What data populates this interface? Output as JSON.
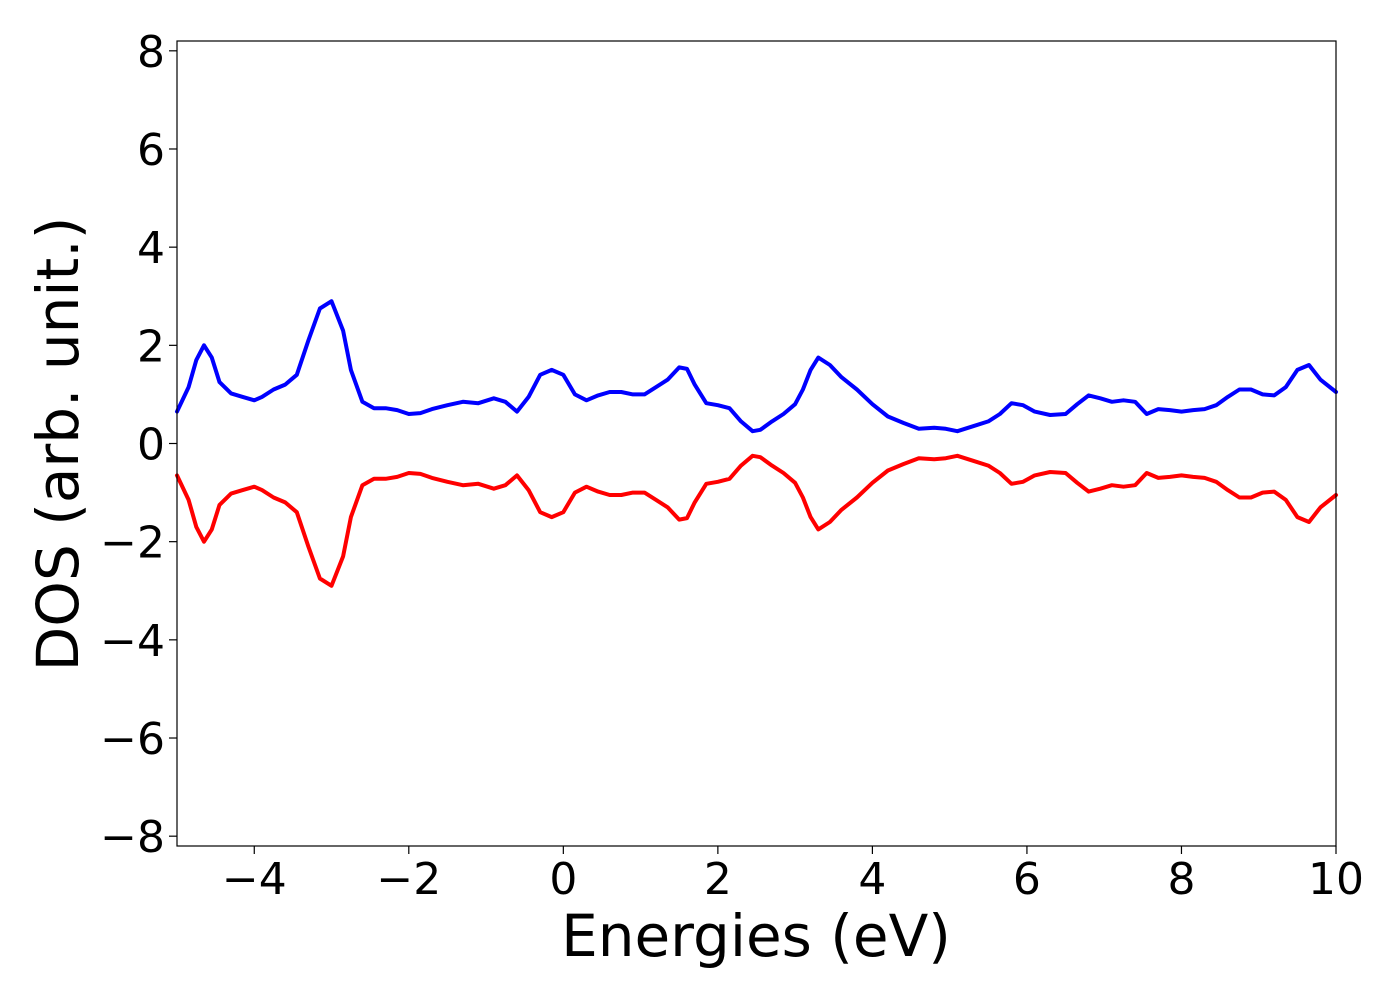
{
  "chart_data": {
    "type": "line",
    "title": "",
    "xlabel": "Energies (eV)",
    "ylabel": "DOS (arb. unit.)",
    "xlim": [
      -5,
      10
    ],
    "ylim": [
      -8.2,
      8.2
    ],
    "xticks": [
      -4,
      -2,
      0,
      2,
      4,
      6,
      8,
      10
    ],
    "xtick_labels": [
      "−4",
      "−2",
      "0",
      "2",
      "4",
      "6",
      "8",
      "10"
    ],
    "yticks": [
      -8,
      -6,
      -4,
      -2,
      0,
      2,
      4,
      6,
      8
    ],
    "ytick_labels": [
      "−8",
      "−6",
      "−4",
      "−2",
      "0",
      "2",
      "4",
      "6",
      "8"
    ],
    "grid": false,
    "legend": "none",
    "series": [
      {
        "color": "#0000ff",
        "x": [
          -5.0,
          -4.85,
          -4.75,
          -4.65,
          -4.55,
          -4.45,
          -4.3,
          -4.15,
          -4.0,
          -3.9,
          -3.75,
          -3.6,
          -3.45,
          -3.3,
          -3.15,
          -3.0,
          -2.85,
          -2.75,
          -2.6,
          -2.45,
          -2.3,
          -2.15,
          -2.0,
          -1.85,
          -1.7,
          -1.5,
          -1.3,
          -1.1,
          -0.9,
          -0.75,
          -0.6,
          -0.45,
          -0.3,
          -0.15,
          0.0,
          0.15,
          0.3,
          0.45,
          0.6,
          0.75,
          0.9,
          1.05,
          1.2,
          1.35,
          1.5,
          1.6,
          1.7,
          1.85,
          2.0,
          2.15,
          2.3,
          2.45,
          2.55,
          2.7,
          2.85,
          3.0,
          3.1,
          3.2,
          3.3,
          3.45,
          3.6,
          3.8,
          4.0,
          4.2,
          4.4,
          4.6,
          4.8,
          4.95,
          5.1,
          5.3,
          5.5,
          5.65,
          5.8,
          5.95,
          6.1,
          6.3,
          6.5,
          6.65,
          6.8,
          6.95,
          7.1,
          7.25,
          7.4,
          7.55,
          7.7,
          7.85,
          8.0,
          8.15,
          8.3,
          8.45,
          8.6,
          8.75,
          8.9,
          9.05,
          9.2,
          9.35,
          9.5,
          9.65,
          9.8,
          10.0
        ],
        "y": [
          0.65,
          1.15,
          1.7,
          2.0,
          1.75,
          1.25,
          1.02,
          0.95,
          0.88,
          0.95,
          1.1,
          1.2,
          1.4,
          2.1,
          2.75,
          2.9,
          2.3,
          1.5,
          0.85,
          0.72,
          0.72,
          0.68,
          0.6,
          0.62,
          0.7,
          0.78,
          0.85,
          0.82,
          0.92,
          0.85,
          0.65,
          0.95,
          1.4,
          1.5,
          1.4,
          1.0,
          0.88,
          0.98,
          1.05,
          1.05,
          1.0,
          1.0,
          1.15,
          1.3,
          1.55,
          1.52,
          1.2,
          0.82,
          0.78,
          0.72,
          0.45,
          0.25,
          0.28,
          0.45,
          0.6,
          0.8,
          1.1,
          1.5,
          1.75,
          1.6,
          1.35,
          1.1,
          0.8,
          0.55,
          0.42,
          0.3,
          0.32,
          0.3,
          0.25,
          0.35,
          0.45,
          0.6,
          0.82,
          0.78,
          0.65,
          0.58,
          0.6,
          0.8,
          0.98,
          0.92,
          0.85,
          0.88,
          0.85,
          0.6,
          0.7,
          0.68,
          0.65,
          0.68,
          0.7,
          0.78,
          0.95,
          1.1,
          1.1,
          1.0,
          0.98,
          1.15,
          1.5,
          1.6,
          1.3,
          1.05
        ]
      },
      {
        "color": "#ff0000",
        "x": [
          -5.0,
          -4.85,
          -4.75,
          -4.65,
          -4.55,
          -4.45,
          -4.3,
          -4.15,
          -4.0,
          -3.9,
          -3.75,
          -3.6,
          -3.45,
          -3.3,
          -3.15,
          -3.0,
          -2.85,
          -2.75,
          -2.6,
          -2.45,
          -2.3,
          -2.15,
          -2.0,
          -1.85,
          -1.7,
          -1.5,
          -1.3,
          -1.1,
          -0.9,
          -0.75,
          -0.6,
          -0.45,
          -0.3,
          -0.15,
          0.0,
          0.15,
          0.3,
          0.45,
          0.6,
          0.75,
          0.9,
          1.05,
          1.2,
          1.35,
          1.5,
          1.6,
          1.7,
          1.85,
          2.0,
          2.15,
          2.3,
          2.45,
          2.55,
          2.7,
          2.85,
          3.0,
          3.1,
          3.2,
          3.3,
          3.45,
          3.6,
          3.8,
          4.0,
          4.2,
          4.4,
          4.6,
          4.8,
          4.95,
          5.1,
          5.3,
          5.5,
          5.65,
          5.8,
          5.95,
          6.1,
          6.3,
          6.5,
          6.65,
          6.8,
          6.95,
          7.1,
          7.25,
          7.4,
          7.55,
          7.7,
          7.85,
          8.0,
          8.15,
          8.3,
          8.45,
          8.6,
          8.75,
          8.9,
          9.05,
          9.2,
          9.35,
          9.5,
          9.65,
          9.8,
          10.0
        ],
        "y": [
          -0.65,
          -1.15,
          -1.7,
          -2.0,
          -1.75,
          -1.25,
          -1.02,
          -0.95,
          -0.88,
          -0.95,
          -1.1,
          -1.2,
          -1.4,
          -2.1,
          -2.75,
          -2.9,
          -2.3,
          -1.5,
          -0.85,
          -0.72,
          -0.72,
          -0.68,
          -0.6,
          -0.62,
          -0.7,
          -0.78,
          -0.85,
          -0.82,
          -0.92,
          -0.85,
          -0.65,
          -0.95,
          -1.4,
          -1.5,
          -1.4,
          -1.0,
          -0.88,
          -0.98,
          -1.05,
          -1.05,
          -1.0,
          -1.0,
          -1.15,
          -1.3,
          -1.55,
          -1.52,
          -1.2,
          -0.82,
          -0.78,
          -0.72,
          -0.45,
          -0.25,
          -0.28,
          -0.45,
          -0.6,
          -0.8,
          -1.1,
          -1.5,
          -1.75,
          -1.6,
          -1.35,
          -1.1,
          -0.8,
          -0.55,
          -0.42,
          -0.3,
          -0.32,
          -0.3,
          -0.25,
          -0.35,
          -0.45,
          -0.6,
          -0.82,
          -0.78,
          -0.65,
          -0.58,
          -0.6,
          -0.8,
          -0.98,
          -0.92,
          -0.85,
          -0.88,
          -0.85,
          -0.6,
          -0.7,
          -0.68,
          -0.65,
          -0.68,
          -0.7,
          -0.78,
          -0.95,
          -1.1,
          -1.1,
          -1.0,
          -0.98,
          -1.15,
          -1.5,
          -1.6,
          -1.3,
          -1.05
        ]
      }
    ]
  }
}
